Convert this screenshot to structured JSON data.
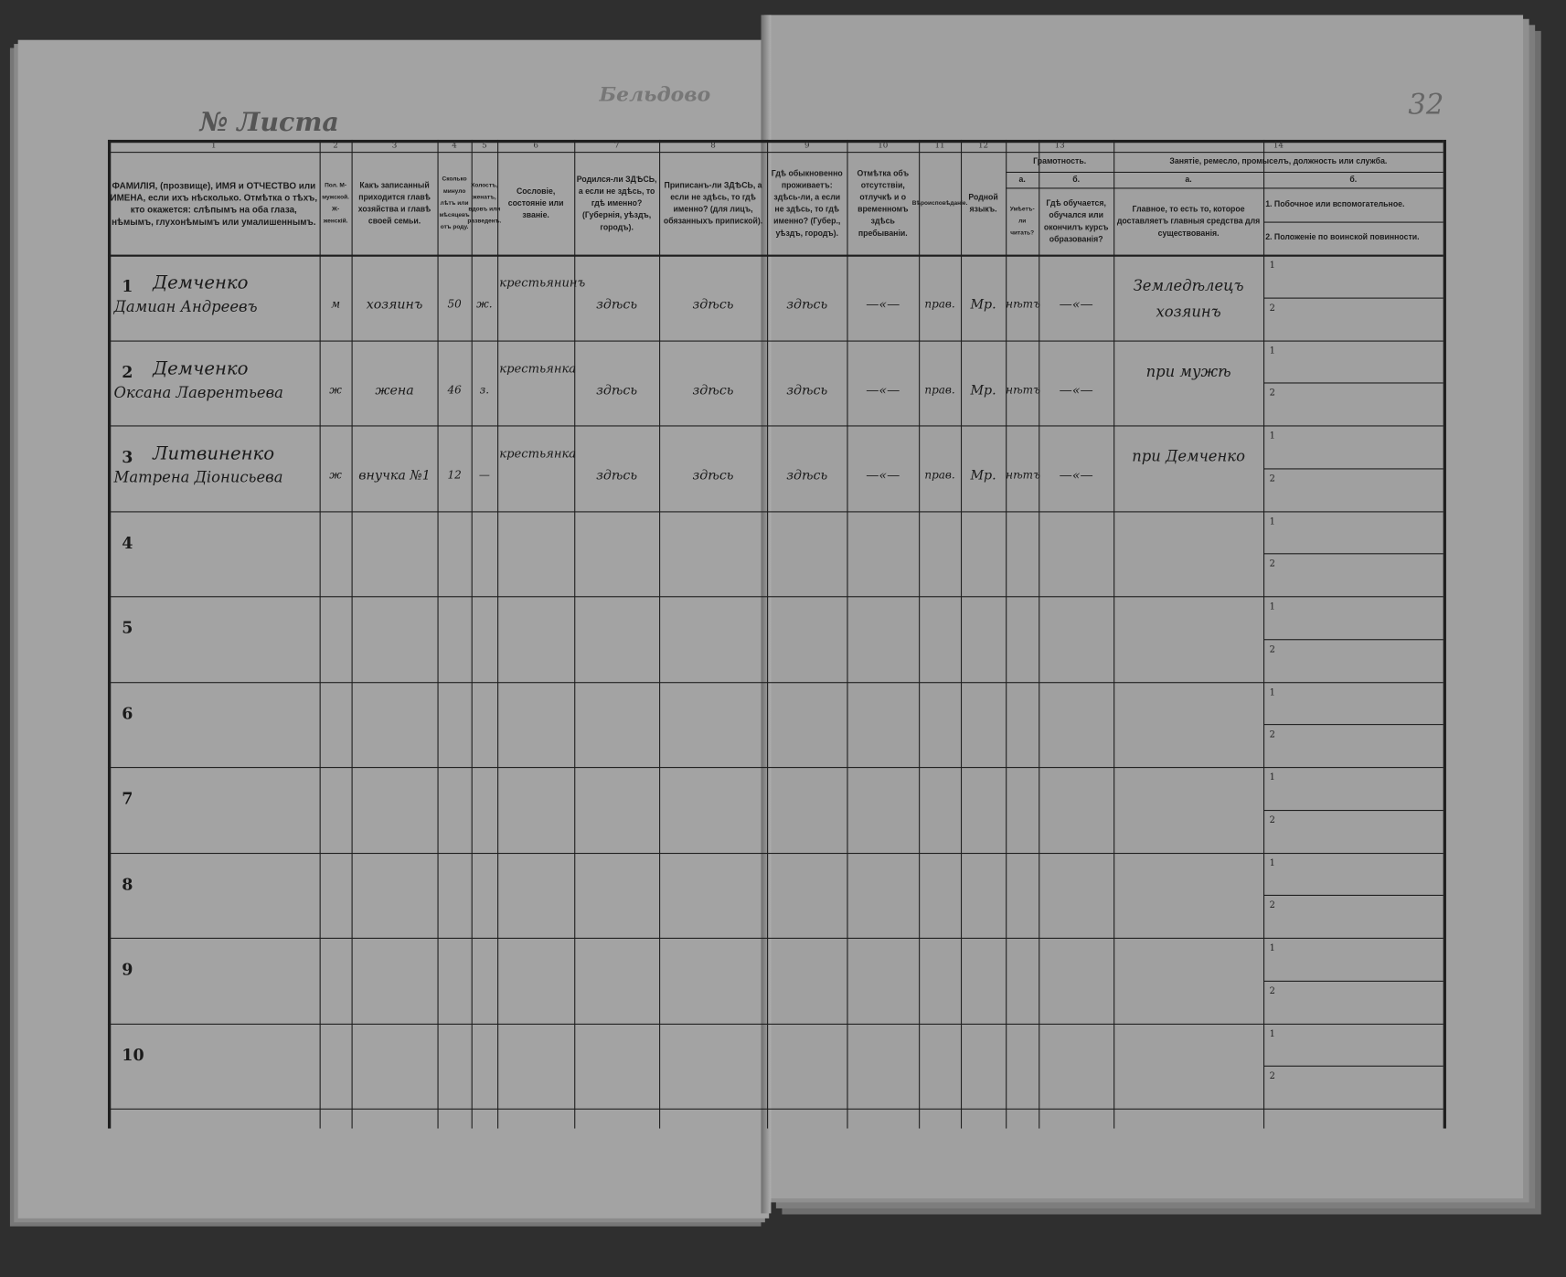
{
  "header": {
    "sheet_label": "№ Листа",
    "village": "Бельдово",
    "page_number": "32"
  },
  "columns": [
    {
      "num": "1",
      "text": "ФАМИЛІЯ, (прозвище), ИМЯ и ОТЧЕСТВО или ИМЕНА, если ихъ нѣсколько. Отмѣтка о тѣхъ, кто окажется: слѣпымъ на оба глаза, нѣмымъ, глухонѣмымъ или умалишеннымъ."
    },
    {
      "num": "2",
      "text": "Пол. М-мужской. Ж-женскій."
    },
    {
      "num": "3",
      "text": "Какъ записанный приходится главѣ хозяйства и главѣ своей семьи."
    },
    {
      "num": "4",
      "text": "Сколько минуло лѣтъ или мѣсяцевъ отъ роду."
    },
    {
      "num": "5",
      "text": "Холостъ, женатъ, вдовъ или разведенъ."
    },
    {
      "num": "6",
      "text": "Сословіе, состояніе или званіе."
    },
    {
      "num": "7",
      "text": "Родился-ли ЗДѢСЬ, а если не здѣсь, то гдѣ именно? (Губернія, уѣздъ, городъ)."
    },
    {
      "num": "8",
      "text": "Приписанъ-ли ЗДѢСЬ, а если не здѣсь, то гдѣ именно? (для лицъ, обязанныхъ припиской)."
    },
    {
      "num": "9",
      "text": "Гдѣ обыкновенно проживаетъ: здѣсь-ли, а если не здѣсь, то гдѣ именно? (Губер., уѣздъ, городъ)."
    },
    {
      "num": "10",
      "text": "Отмѣтка объ отсутствіи, отлучкѣ и о временномъ здѣсь пребываніи."
    },
    {
      "num": "11",
      "text": "Вѣроисповѣданіе."
    },
    {
      "num": "12",
      "text": "Родной языкъ."
    },
    {
      "num": "13",
      "text": "Грамотность.",
      "a_label": "а.",
      "a_text": "Умѣетъ-ли читать?",
      "b_label": "б.",
      "b_text": "Гдѣ обучается, обучался или окончилъ курсъ образованія?"
    },
    {
      "num": "14",
      "text": "Занятіе, ремесло, промыселъ, должность или служба.",
      "a_label": "а.",
      "a_text": "Главное, то есть то, которое доставляетъ главныя средства для существованія.",
      "b_label": "б.",
      "b_text1": "1. Побочное или вспомогательное.",
      "b_text2": "2. Положеніе по воинской повинности."
    }
  ],
  "rows": [
    {
      "n": "1",
      "surname": "Демченко",
      "name": "Дамиан Андреевъ",
      "sex": "м",
      "relation": "хозяинъ",
      "age": "50",
      "marital": "ж.",
      "estate": "крестьянинъ",
      "born": "здѣсь",
      "registered": "здѣсь",
      "residence": "здѣсь",
      "absence": "—«—",
      "religion": "прав.",
      "language": "Мр.",
      "literate": "нѣтъ",
      "education": "—«—",
      "occupation": "Земледѣлецъ хозяинъ"
    },
    {
      "n": "2",
      "surname": "Демченко",
      "name": "Оксана Лаврентьева",
      "sex": "ж",
      "relation": "жена",
      "age": "46",
      "marital": "з.",
      "estate": "крестьянка",
      "born": "здѣсь",
      "registered": "здѣсь",
      "residence": "здѣсь",
      "absence": "—«—",
      "religion": "прав.",
      "language": "Мр.",
      "literate": "нѣтъ",
      "education": "—«—",
      "occupation": "при мужѣ"
    },
    {
      "n": "3",
      "surname": "Литвиненко",
      "name": "Матрена Діонисьева",
      "sex": "ж",
      "relation": "внучка №1",
      "age": "12",
      "marital": "—",
      "estate": "крестьянка",
      "born": "здѣсь",
      "registered": "здѣсь",
      "residence": "здѣсь",
      "absence": "—«—",
      "religion": "прав.",
      "language": "Мр.",
      "literate": "нѣтъ",
      "education": "—«—",
      "occupation": "при Демченко"
    },
    {
      "n": "4"
    },
    {
      "n": "5"
    },
    {
      "n": "6"
    },
    {
      "n": "7"
    },
    {
      "n": "8"
    },
    {
      "n": "9"
    },
    {
      "n": "10"
    }
  ],
  "sub_labels": [
    "1",
    "2"
  ],
  "colors": {
    "paper": "#a3a3a3",
    "ink": "#1c1c1c",
    "background": "#2f2f2f"
  }
}
